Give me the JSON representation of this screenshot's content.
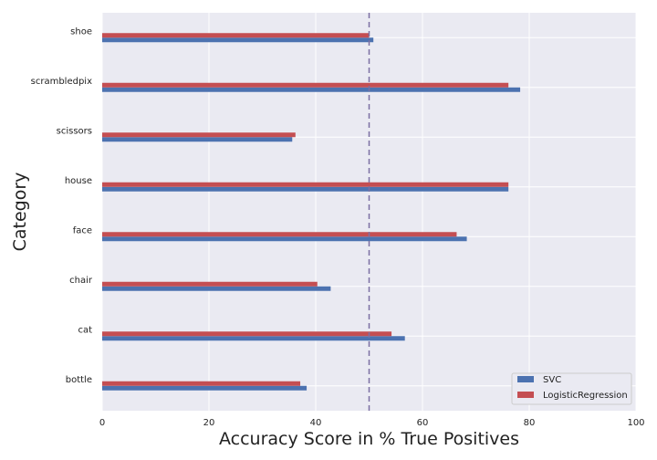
{
  "chart_data": {
    "type": "bar",
    "orientation": "horizontal",
    "categories": [
      "bottle",
      "cat",
      "chair",
      "face",
      "house",
      "scissors",
      "scrambledpix",
      "shoe"
    ],
    "series": [
      {
        "name": "SVC",
        "color": "#4c72b0",
        "values": [
          38.3,
          56.7,
          42.8,
          68.3,
          76.1,
          35.6,
          78.3,
          50.8
        ]
      },
      {
        "name": "LogisticRegression",
        "color": "#c44e52",
        "values": [
          37.1,
          54.2,
          40.3,
          66.4,
          76.1,
          36.2,
          76.1,
          50.0
        ]
      }
    ],
    "xlabel": "Accuracy Score in % True Positives",
    "ylabel": "Category",
    "xlim": [
      0,
      100
    ],
    "xticks": [
      "0",
      "20",
      "40",
      "60",
      "80",
      "100"
    ],
    "reference_line": {
      "x": 50,
      "color": "#7b6fa3",
      "style": "dashed"
    },
    "grid": true,
    "background_color": "#eaeaf2",
    "legend_position": "lower-right"
  }
}
